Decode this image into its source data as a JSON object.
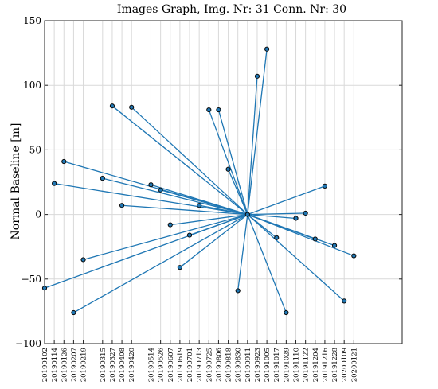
{
  "chart_data": {
    "type": "scatter",
    "title": "Images Graph, Img. Nr: 31 Conn. Nr: 30",
    "ylabel": "Normal Baseline [m]",
    "xlabel": "",
    "ylim": [
      -100,
      150
    ],
    "yticks": [
      -100,
      -50,
      0,
      50,
      100,
      150
    ],
    "grid": true,
    "xaxis": "date",
    "xlim": [
      "2019-01-02",
      "2020-03-21"
    ],
    "xtick_labels": [
      "20190102",
      "20190114",
      "20190126",
      "20190207",
      "20190219",
      "20190315",
      "20190327",
      "20190408",
      "20190420",
      "20190514",
      "20190526",
      "20190607",
      "20190619",
      "20190701",
      "20190713",
      "20190725",
      "20190806",
      "20190818",
      "20190830",
      "20190911",
      "20190923",
      "20191005",
      "20191017",
      "20191029",
      "20191110",
      "20191122",
      "20191204",
      "20191216",
      "20191228",
      "20200109",
      "20200121"
    ],
    "master": {
      "date": "2019-09-11",
      "baseline": 0
    },
    "points": [
      {
        "date": "2019-01-02",
        "baseline": -57
      },
      {
        "date": "2019-01-14",
        "baseline": 24
      },
      {
        "date": "2019-01-26",
        "baseline": 41
      },
      {
        "date": "2019-02-07",
        "baseline": -76
      },
      {
        "date": "2019-02-19",
        "baseline": -35
      },
      {
        "date": "2019-03-15",
        "baseline": 28
      },
      {
        "date": "2019-03-27",
        "baseline": 84
      },
      {
        "date": "2019-04-08",
        "baseline": 7
      },
      {
        "date": "2019-04-20",
        "baseline": 83
      },
      {
        "date": "2019-05-14",
        "baseline": 23
      },
      {
        "date": "2019-05-26",
        "baseline": 19
      },
      {
        "date": "2019-06-07",
        "baseline": -8
      },
      {
        "date": "2019-06-19",
        "baseline": -41
      },
      {
        "date": "2019-07-01",
        "baseline": -16
      },
      {
        "date": "2019-07-13",
        "baseline": 7
      },
      {
        "date": "2019-07-25",
        "baseline": 81
      },
      {
        "date": "2019-08-06",
        "baseline": 81
      },
      {
        "date": "2019-08-18",
        "baseline": 35
      },
      {
        "date": "2019-08-30",
        "baseline": -59
      },
      {
        "date": "2019-09-23",
        "baseline": 107
      },
      {
        "date": "2019-10-05",
        "baseline": 128
      },
      {
        "date": "2019-10-17",
        "baseline": -18
      },
      {
        "date": "2019-10-29",
        "baseline": -76
      },
      {
        "date": "2019-11-10",
        "baseline": -3
      },
      {
        "date": "2019-11-22",
        "baseline": 1
      },
      {
        "date": "2019-12-04",
        "baseline": -19
      },
      {
        "date": "2019-12-16",
        "baseline": 22
      },
      {
        "date": "2019-12-28",
        "baseline": -24
      },
      {
        "date": "2020-01-09",
        "baseline": -67
      },
      {
        "date": "2020-01-21",
        "baseline": -32
      }
    ]
  }
}
